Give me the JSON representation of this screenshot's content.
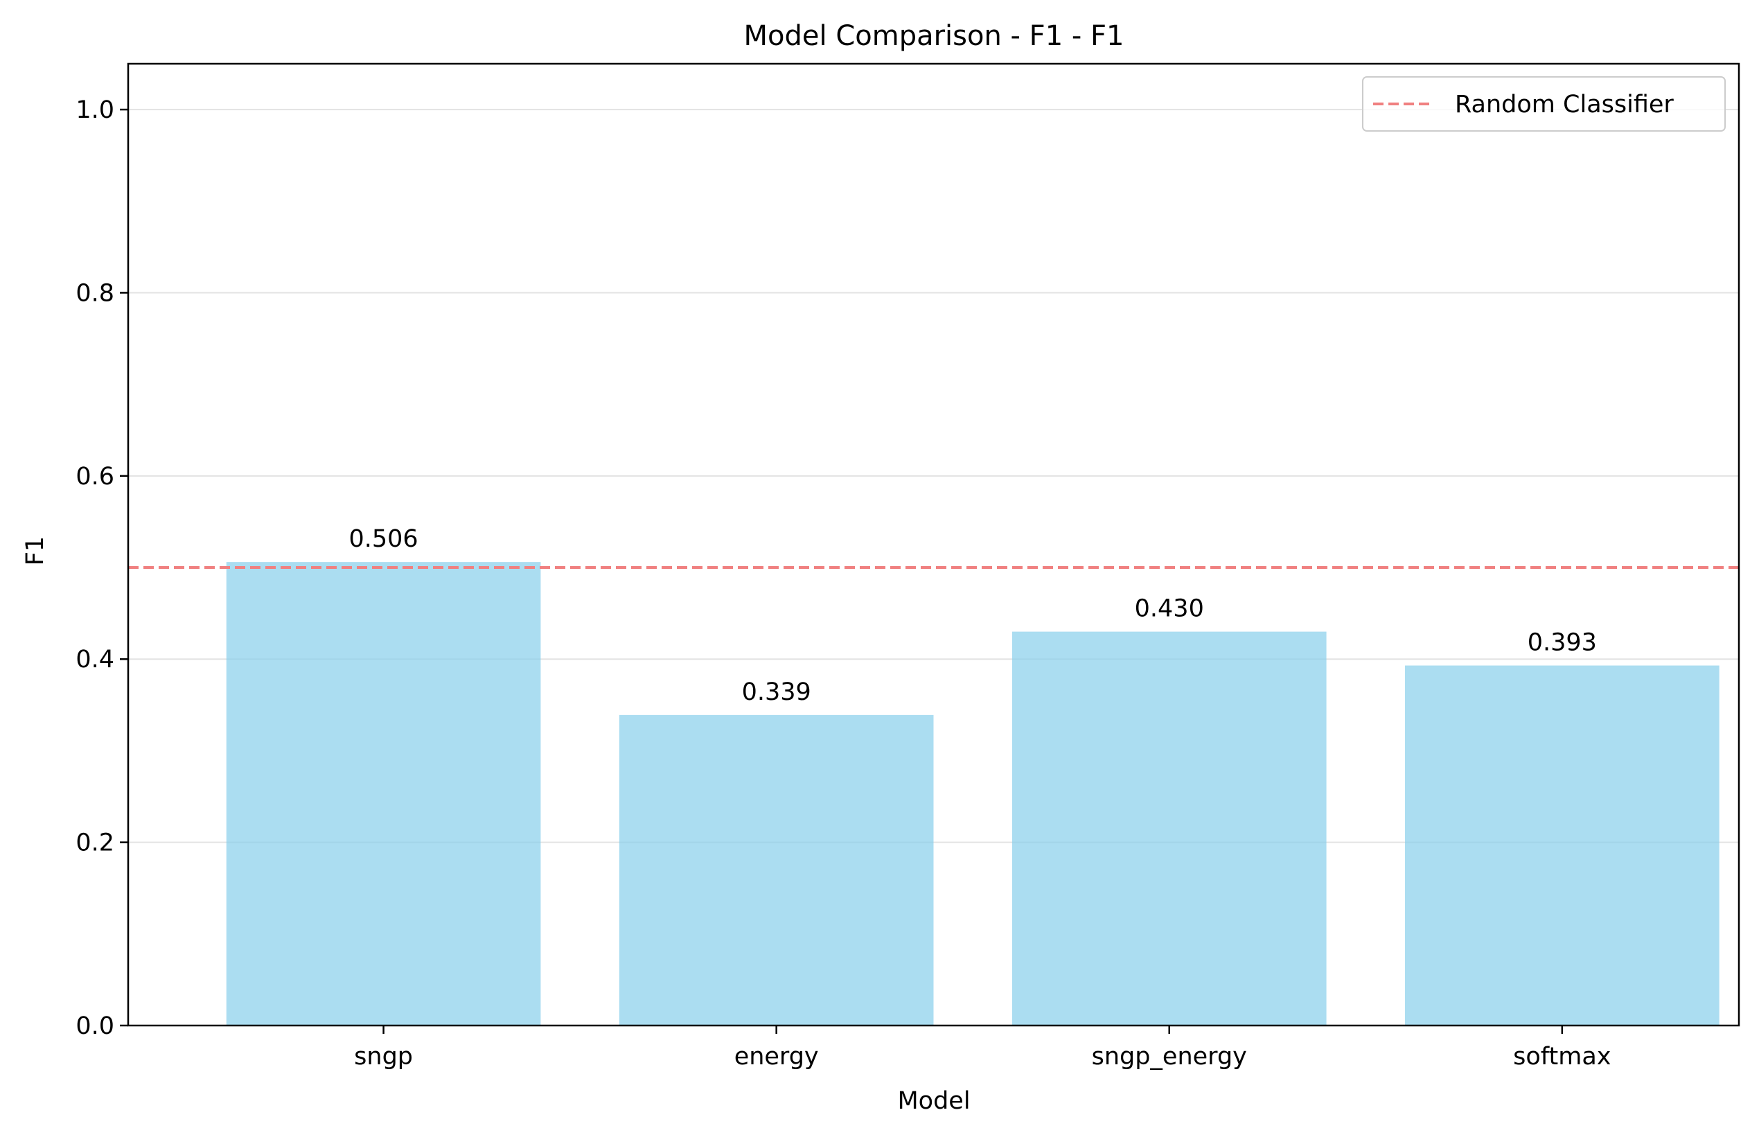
{
  "chart_data": {
    "type": "bar",
    "title": "Model Comparison - F1 - F1",
    "xlabel": "Model",
    "ylabel": "F1",
    "categories": [
      "sngp",
      "energy",
      "sngp_energy",
      "softmax"
    ],
    "values": [
      0.506,
      0.339,
      0.43,
      0.393
    ],
    "value_labels": [
      "0.506",
      "0.339",
      "0.430",
      "0.393"
    ],
    "ylim": [
      0,
      1.05
    ],
    "yticks": [
      0.0,
      0.2,
      0.4,
      0.6,
      0.8,
      1.0
    ],
    "ytick_labels": [
      "0.0",
      "0.2",
      "0.4",
      "0.6",
      "0.8",
      "1.0"
    ],
    "grid": "y",
    "bar_color": "#87CEEB",
    "reference_line": {
      "label": "Random Classifier",
      "value": 0.5,
      "color": "#F08080",
      "style": "dashed"
    },
    "legend": {
      "placement": "top-right",
      "entries": [
        "Random Classifier"
      ]
    }
  }
}
